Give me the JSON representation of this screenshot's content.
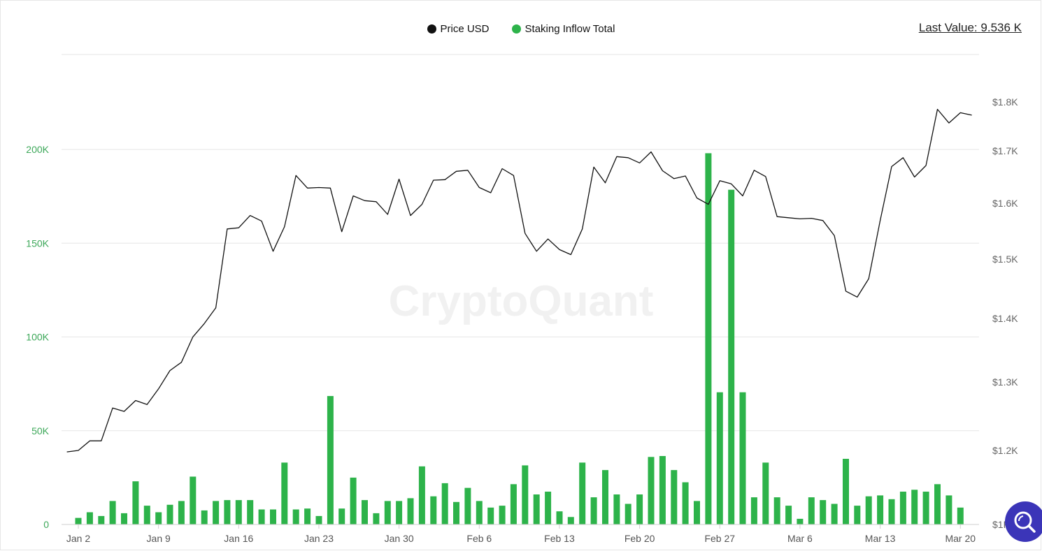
{
  "legend": {
    "price_label": "Price USD",
    "inflow_label": "Staking Inflow Total"
  },
  "last_value": {
    "label": "Last Value:",
    "value": "9.536 K"
  },
  "watermark": "CryptoQuant",
  "colors": {
    "price": "#111111",
    "inflow": "#2db34a",
    "grid": "#e6e6e6",
    "left_axis": "#3ea85a",
    "right_axis": "#666666",
    "fab": "#3b35b8"
  },
  "icons": {
    "fab": "search-icon"
  },
  "chart_data": {
    "type": "bar",
    "title": "",
    "x_tick_labels": [
      "Jan 2",
      "Jan 9",
      "Jan 16",
      "Jan 23",
      "Jan 30",
      "Feb 6",
      "Feb 13",
      "Feb 20",
      "Feb 27",
      "Mar 6",
      "Mar 13",
      "Mar 20"
    ],
    "left_axis": {
      "ticks": [
        0,
        50000,
        100000,
        150000,
        200000
      ],
      "tick_labels": [
        "0",
        "50K",
        "100K",
        "150K",
        "200K"
      ],
      "ylim": [
        0,
        250000
      ]
    },
    "right_axis": {
      "tick_labels": [
        "$1.8K",
        "$1.7K",
        "$1.6K",
        "$1.5K",
        "$1.4K",
        "$1.3K",
        "$1.2K",
        "$1K"
      ]
    },
    "grid": true,
    "legend_position": "top-center",
    "series": [
      {
        "name": "Staking Inflow Total",
        "type": "bar",
        "axis": "left",
        "x_start": "Jan 2",
        "values": [
          3500,
          6500,
          4500,
          12500,
          6000,
          23000,
          10000,
          6500,
          10500,
          12500,
          25500,
          7500,
          12500,
          13000,
          13000,
          13000,
          8000,
          8000,
          33000,
          8000,
          8500,
          4500,
          68500,
          8500,
          25000,
          13000,
          6000,
          12500,
          12500,
          14000,
          31000,
          15000,
          22000,
          12000,
          19500,
          12500,
          9000,
          10000,
          21500,
          31500,
          16000,
          17500,
          7000,
          4000,
          33000,
          14500,
          29000,
          16000,
          11000,
          16000,
          36000,
          36500,
          29000,
          22500,
          12500,
          198000,
          70500,
          178500,
          70500,
          14500,
          33000,
          14500,
          10000,
          3000,
          14500,
          13000,
          11000,
          35000,
          10000,
          15000,
          15500,
          13500,
          17500,
          18500,
          17500,
          21500,
          15500,
          9000
        ]
      },
      {
        "name": "Price USD",
        "type": "line",
        "axis": "right",
        "x_start": "Jan 1",
        "values": [
          1196,
          1200,
          1214,
          1214,
          1262,
          1257,
          1273,
          1267,
          1290,
          1318,
          1331,
          1371,
          1392,
          1418,
          1554,
          1556,
          1578,
          1568,
          1514,
          1558,
          1653,
          1629,
          1630,
          1629,
          1549,
          1614,
          1605,
          1603,
          1580,
          1646,
          1578,
          1598,
          1644,
          1645,
          1661,
          1663,
          1630,
          1620,
          1666,
          1653,
          1546,
          1514,
          1536,
          1517,
          1508,
          1554,
          1669,
          1639,
          1689,
          1687,
          1677,
          1698,
          1662,
          1647,
          1652,
          1610,
          1598,
          1643,
          1637,
          1614,
          1663,
          1651,
          1576,
          1574,
          1572,
          1573,
          1569,
          1542,
          1446,
          1436,
          1467,
          1569,
          1670,
          1687,
          1650,
          1672,
          1785,
          1757,
          1778,
          1773
        ]
      }
    ]
  }
}
